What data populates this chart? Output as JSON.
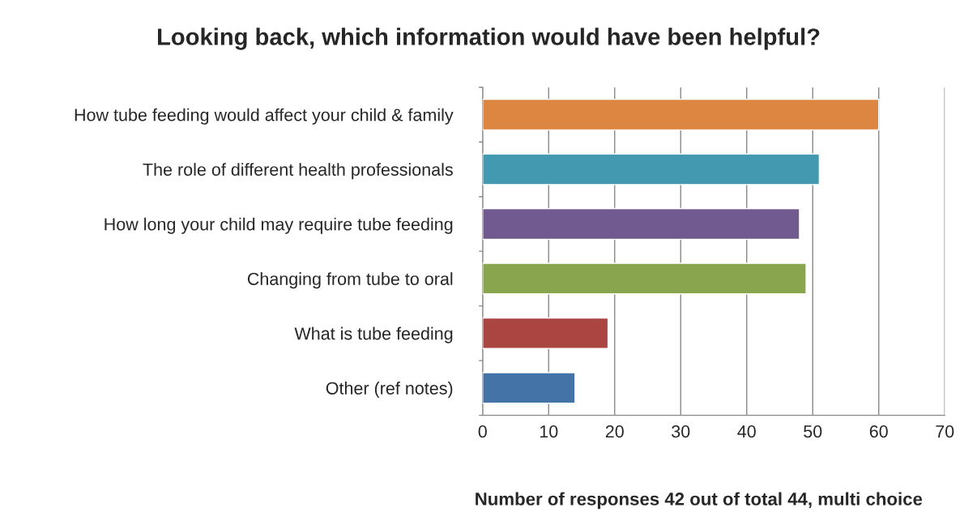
{
  "chart_data": {
    "type": "bar",
    "orientation": "horizontal",
    "title": "Looking back, which information would have been helpful?",
    "xlabel": "Number of responses 42 out of total 44, multi choice",
    "categories": [
      "How tube feeding would affect your child & family",
      "The role of different health professionals",
      "How long your child may require tube feeding",
      "Changing from tube to oral",
      "What is tube feeding",
      "Other (ref notes)"
    ],
    "values": [
      60,
      51,
      48,
      49,
      19,
      14
    ],
    "colors": [
      "#dd8641",
      "#4299b0",
      "#715a8f",
      "#89a64e",
      "#ab4542",
      "#4473a8"
    ],
    "xlim": [
      0,
      70
    ],
    "xticks": [
      0,
      10,
      20,
      30,
      40,
      50,
      60,
      70
    ],
    "grid": "x",
    "legend": false
  }
}
